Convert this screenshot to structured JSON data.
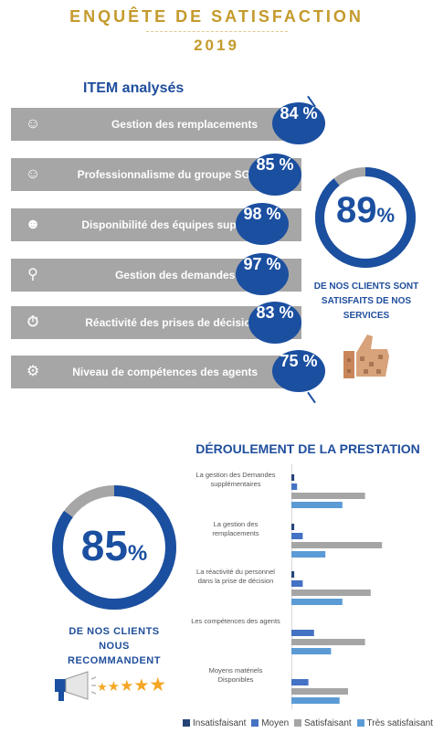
{
  "header": {
    "title_line1": "ENQUÊTE DE SATISFACTION",
    "title_line2": "2019"
  },
  "items_section": {
    "title": "ITEM analysés"
  },
  "items": [
    {
      "label": "Gestion des remplacements",
      "value": "84 %",
      "icon": "users-icon"
    },
    {
      "label": "Professionnalisme du groupe SGP",
      "value": "85 %",
      "icon": "team-icon"
    },
    {
      "label": "Disponibilité des équipes support",
      "value": "98 %",
      "icon": "support-agent-icon"
    },
    {
      "label": "Gestion des demandes sup",
      "value": "97 %",
      "icon": "magnifier-icon"
    },
    {
      "label": "Réactivité des  prises de décision",
      "value": "83 %",
      "icon": "stopwatch-icon"
    },
    {
      "label": "Niveau de compétences des agents",
      "value": "75 %",
      "icon": "brain-head-icon"
    }
  ],
  "satisfaction": {
    "value": "89",
    "unit": "%",
    "fraction": 0.89,
    "caption": "DE NOS CLIENTS SONT SATISFAITS DE NOS SERVICES"
  },
  "recommend": {
    "value": "85",
    "unit": "%",
    "fraction": 0.85,
    "caption": "DE NOS CLIENTS NOUS RECOMMANDENT"
  },
  "colors": {
    "navy": "#1b4fa0",
    "light_blue": "#5b9bd5",
    "gray": "#a6a6a6",
    "gold": "#c49a2c",
    "star": "#f5a623"
  },
  "rating": {
    "stars": 5
  },
  "chart_data": {
    "type": "bar",
    "orientation": "horizontal",
    "title": "DÉROULEMENT DE LA PRESTATION",
    "categories": [
      "La gestion des Demandes supplémentaires",
      "La gestion des remplacements",
      "La réactivité du personnel dans la prise de décision",
      "Les compétences des agents",
      "Moyens matériels Disponibles"
    ],
    "series": [
      {
        "name": "Insatisfaisant",
        "color": "#264478",
        "values": [
          1,
          1,
          1,
          0,
          0
        ]
      },
      {
        "name": "Moyen",
        "color": "#4472c4",
        "values": [
          2,
          4,
          4,
          8,
          6
        ]
      },
      {
        "name": "Satisfaisant",
        "color": "#a5a5a5",
        "values": [
          26,
          32,
          28,
          26,
          20
        ]
      },
      {
        "name": "Très satisfaisant",
        "color": "#5b9bd5",
        "values": [
          18,
          12,
          18,
          14,
          17
        ]
      }
    ],
    "legend_position": "bottom",
    "grid": false,
    "axis_labels": false
  }
}
